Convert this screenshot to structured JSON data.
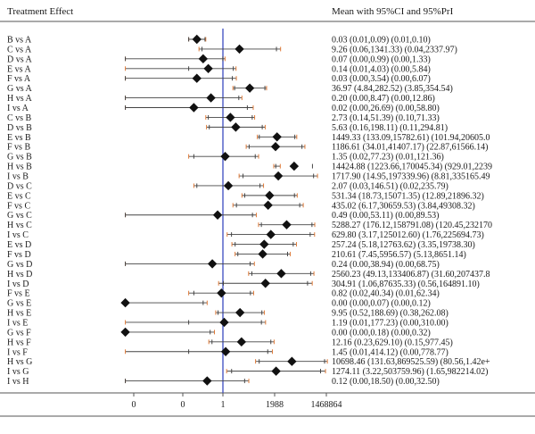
{
  "header": {
    "left": "Treatment Effect",
    "right": "Mean with 95%CI and 95%PrI"
  },
  "colors": {
    "ci_line": "#444444",
    "pi_tick": "#e07b39",
    "ref_line": "#3b4cc0",
    "marker": "#111111",
    "rule": "#555555"
  },
  "chart_data": {
    "type": "forest",
    "title": "",
    "xlabel": "",
    "ylabel": "",
    "x_tick_labels": [
      "0",
      "0",
      "1",
      "1988",
      "1468864"
    ],
    "reference_value": 1,
    "scale": "log",
    "rows": [
      {
        "label": "B vs A",
        "text": "0.03 (0.01,0.09) (0.01,0.10)",
        "mean": 0.03,
        "ci": [
          0.01,
          0.09
        ],
        "pi": [
          0.01,
          0.1
        ]
      },
      {
        "label": "C vs A",
        "text": "9.26 (0.06,1341.33) (0.04,2337.97)",
        "mean": 9.26,
        "ci": [
          0.06,
          1341.33
        ],
        "pi": [
          0.04,
          2337.97
        ]
      },
      {
        "label": "D vs A",
        "text": "0.07 (0.00,0.99) (0.00,1.33)",
        "mean": 0.07,
        "ci": [
          0.0,
          0.99
        ],
        "pi": [
          0.0,
          1.33
        ]
      },
      {
        "label": "E vs A",
        "text": "0.14 (0.01,4.03) (0.00,5.84)",
        "mean": 0.14,
        "ci": [
          0.01,
          4.03
        ],
        "pi": [
          0.0,
          5.84
        ]
      },
      {
        "label": "F vs A",
        "text": "0.03 (0.00,3.54) (0.00,6.07)",
        "mean": 0.03,
        "ci": [
          0.0,
          3.54
        ],
        "pi": [
          0.0,
          6.07
        ]
      },
      {
        "label": "G vs A",
        "text": "36.97 (4.84,282.52) (3.85,354.54)",
        "mean": 36.97,
        "ci": [
          4.84,
          282.52
        ],
        "pi": [
          3.85,
          354.54
        ]
      },
      {
        "label": "H vs A",
        "text": "0.20 (0.00,8.47) (0.00,12.86)",
        "mean": 0.2,
        "ci": [
          0.0,
          8.47
        ],
        "pi": [
          0.0,
          12.86
        ]
      },
      {
        "label": "I vs A",
        "text": "0.02 (0.00,26.69) (0.00,58.80)",
        "mean": 0.02,
        "ci": [
          0.0,
          26.69
        ],
        "pi": [
          0.0,
          58.8
        ]
      },
      {
        "label": "C vs B",
        "text": "2.73 (0.14,51.39) (0.10,71.33)",
        "mean": 2.73,
        "ci": [
          0.14,
          51.39
        ],
        "pi": [
          0.1,
          71.33
        ]
      },
      {
        "label": "D vs B",
        "text": "5.63 (0.16,198.11) (0.11,294.81)",
        "mean": 5.63,
        "ci": [
          0.16,
          198.11
        ],
        "pi": [
          0.11,
          294.81
        ]
      },
      {
        "label": "E vs B",
        "text": "1449.33 (133.09,15782.61) (101.94,20605.0",
        "mean": 1449.33,
        "ci": [
          133.09,
          15782.61
        ],
        "pi": [
          101.94,
          20605.0
        ]
      },
      {
        "label": "F vs B",
        "text": "1186.61 (34.01,41407.17) (22.87,61566.14)",
        "mean": 1186.61,
        "ci": [
          34.01,
          41407.17
        ],
        "pi": [
          22.87,
          61566.14
        ]
      },
      {
        "label": "G vs B",
        "text": "1.35 (0.02,77.23) (0.01,121.36)",
        "mean": 1.35,
        "ci": [
          0.02,
          77.23
        ],
        "pi": [
          0.01,
          121.36
        ]
      },
      {
        "label": "H vs B",
        "text": "14424.88 (1223.66,170045.34) (929.01,2239",
        "mean": 14424.88,
        "ci": [
          1223.66,
          170045.34
        ],
        "pi": [
          929.01,
          2239
        ]
      },
      {
        "label": "I vs B",
        "text": "1717.90 (14.95,197339.96) (8.81,335165.49",
        "mean": 1717.9,
        "ci": [
          14.95,
          197339.96
        ],
        "pi": [
          8.81,
          335165.49
        ]
      },
      {
        "label": "D vs C",
        "text": "2.07 (0.03,146.51) (0.02,235.79)",
        "mean": 2.07,
        "ci": [
          0.03,
          146.51
        ],
        "pi": [
          0.02,
          235.79
        ]
      },
      {
        "label": "E vs C",
        "text": "531.34 (18.73,15071.35) (12.89,21896.32)",
        "mean": 531.34,
        "ci": [
          18.73,
          15071.35
        ],
        "pi": [
          12.89,
          21896.32
        ]
      },
      {
        "label": "F vs C",
        "text": "435.02 (6.17,30659.53) (3.84,49308.32)",
        "mean": 435.02,
        "ci": [
          6.17,
          30659.53
        ],
        "pi": [
          3.84,
          49308.32
        ]
      },
      {
        "label": "G vs C",
        "text": "0.49 (0.00,53.11) (0.00,89.53)",
        "mean": 0.49,
        "ci": [
          0.0,
          53.11
        ],
        "pi": [
          0.0,
          89.53
        ]
      },
      {
        "label": "H vs C",
        "text": "5288.27 (176.12,158791.08) (120.45,232170",
        "mean": 5288.27,
        "ci": [
          176.12,
          158791.08
        ],
        "pi": [
          120.45,
          232170
        ]
      },
      {
        "label": "I vs C",
        "text": "629.80 (3.17,125012.60) (1.76,225694.73)",
        "mean": 629.8,
        "ci": [
          3.17,
          125012.6
        ],
        "pi": [
          1.76,
          225694.73
        ]
      },
      {
        "label": "E vs D",
        "text": "257.24 (5.18,12763.62) (3.35,19738.30)",
        "mean": 257.24,
        "ci": [
          5.18,
          12763.62
        ],
        "pi": [
          3.35,
          19738.3
        ]
      },
      {
        "label": "F vs D",
        "text": "210.61 (7.45,5956.57) (5.13,8651.14)",
        "mean": 210.61,
        "ci": [
          7.45,
          5956.57
        ],
        "pi": [
          5.13,
          8651.14
        ]
      },
      {
        "label": "G vs D",
        "text": "0.24 (0.00,38.94) (0.00,68.75)",
        "mean": 0.24,
        "ci": [
          0.0,
          38.94
        ],
        "pi": [
          0.0,
          68.75
        ]
      },
      {
        "label": "H vs D",
        "text": "2560.23 (49.13,133406.87) (31.60,207437.8",
        "mean": 2560.23,
        "ci": [
          49.13,
          133406.87
        ],
        "pi": [
          31.6,
          207437.8
        ]
      },
      {
        "label": "I vs D",
        "text": "304.91 (1.06,87635.33) (0.56,164891.10)",
        "mean": 304.91,
        "ci": [
          1.06,
          87635.33
        ],
        "pi": [
          0.56,
          164891.1
        ]
      },
      {
        "label": "F vs E",
        "text": "0.82 (0.02,40.34) (0.01,62.34)",
        "mean": 0.82,
        "ci": [
          0.02,
          40.34
        ],
        "pi": [
          0.01,
          62.34
        ]
      },
      {
        "label": "G vs E",
        "text": "0.00 (0.00,0.07) (0.00,0.12)",
        "mean": 0.0,
        "ci": [
          0.0,
          0.07
        ],
        "pi": [
          0.0,
          0.12
        ]
      },
      {
        "label": "H vs E",
        "text": "9.95 (0.52,188.69) (0.38,262.08)",
        "mean": 9.95,
        "ci": [
          0.52,
          188.69
        ],
        "pi": [
          0.38,
          262.08
        ]
      },
      {
        "label": "I vs E",
        "text": "1.19 (0.01,177.23) (0.00,310.00)",
        "mean": 1.19,
        "ci": [
          0.01,
          177.23
        ],
        "pi": [
          0.0,
          310.0
        ]
      },
      {
        "label": "G vs F",
        "text": "0.00 (0.00,0.18) (0.00,0.32)",
        "mean": 0.0,
        "ci": [
          0.0,
          0.18
        ],
        "pi": [
          0.0,
          0.32
        ]
      },
      {
        "label": "H vs F",
        "text": "12.16 (0.23,629.10) (0.15,977.45)",
        "mean": 12.16,
        "ci": [
          0.23,
          629.1
        ],
        "pi": [
          0.15,
          977.45
        ]
      },
      {
        "label": "I vs F",
        "text": "1.45 (0.01,414.12) (0.00,778.77)",
        "mean": 1.45,
        "ci": [
          0.01,
          414.12
        ],
        "pi": [
          0.0,
          778.77
        ]
      },
      {
        "label": "H vs G",
        "text": "10698.46 (131.63,869525.59) (80.56,1.42e+",
        "mean": 10698.46,
        "ci": [
          131.63,
          869525.59
        ],
        "pi": [
          80.56,
          1420000
        ]
      },
      {
        "label": "I vs G",
        "text": "1274.11 (3.22,503759.96) (1.65,982214.02)",
        "mean": 1274.11,
        "ci": [
          3.22,
          503759.96
        ],
        "pi": [
          1.65,
          982214.02
        ]
      },
      {
        "label": "I vs H",
        "text": "0.12 (0.00,18.50) (0.00,32.50)",
        "mean": 0.12,
        "ci": [
          0.0,
          18.5
        ],
        "pi": [
          0.0,
          32.5
        ]
      }
    ]
  }
}
